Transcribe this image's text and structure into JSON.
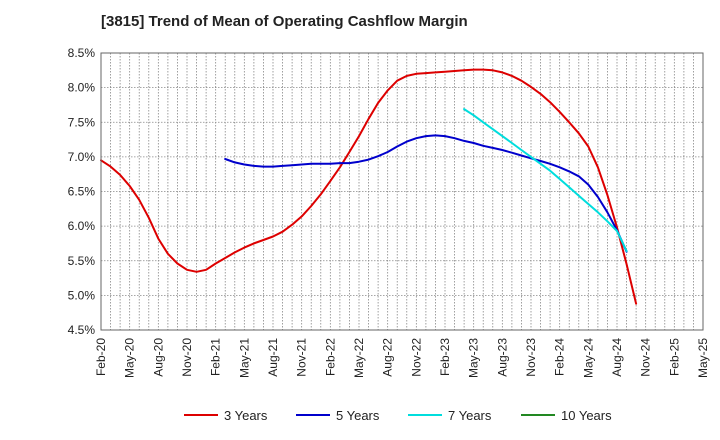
{
  "chart_data": {
    "type": "line",
    "title": "[3815]  Trend of Mean of Operating Cashflow Margin",
    "xlabel": "",
    "ylabel": "",
    "grid": true,
    "legend_position": "bottom",
    "y_axis": {
      "min": 4.5,
      "max": 8.5,
      "ticks": [
        4.5,
        5.0,
        5.5,
        6.0,
        6.5,
        7.0,
        7.5,
        8.0,
        8.5
      ],
      "tick_labels": [
        "4.5%",
        "5.0%",
        "5.5%",
        "6.0%",
        "6.5%",
        "7.0%",
        "7.5%",
        "8.0%",
        "8.5%"
      ]
    },
    "x_axis": {
      "min": "2020-02",
      "max": "2025-05",
      "tick_labels": [
        "Feb-20",
        "May-20",
        "Aug-20",
        "Nov-20",
        "Feb-21",
        "May-21",
        "Aug-21",
        "Nov-21",
        "Feb-22",
        "May-22",
        "Aug-22",
        "Nov-22",
        "Feb-23",
        "May-23",
        "Aug-23",
        "Nov-23",
        "Feb-24",
        "May-24",
        "Aug-24",
        "Nov-24",
        "Feb-25",
        "May-25"
      ]
    },
    "series": [
      {
        "name": "3 Years",
        "color": "#dd0000",
        "points": [
          [
            "2020-02",
            6.95
          ],
          [
            "2020-03",
            6.86
          ],
          [
            "2020-04",
            6.74
          ],
          [
            "2020-05",
            6.58
          ],
          [
            "2020-06",
            6.38
          ],
          [
            "2020-07",
            6.12
          ],
          [
            "2020-08",
            5.82
          ],
          [
            "2020-09",
            5.6
          ],
          [
            "2020-10",
            5.46
          ],
          [
            "2020-11",
            5.37
          ],
          [
            "2020-12",
            5.34
          ],
          [
            "2021-01",
            5.37
          ],
          [
            "2021-02",
            5.46
          ],
          [
            "2021-03",
            5.54
          ],
          [
            "2021-04",
            5.62
          ],
          [
            "2021-05",
            5.69
          ],
          [
            "2021-06",
            5.75
          ],
          [
            "2021-07",
            5.8
          ],
          [
            "2021-08",
            5.85
          ],
          [
            "2021-09",
            5.92
          ],
          [
            "2021-10",
            6.02
          ],
          [
            "2021-11",
            6.14
          ],
          [
            "2021-12",
            6.29
          ],
          [
            "2022-01",
            6.46
          ],
          [
            "2022-02",
            6.65
          ],
          [
            "2022-03",
            6.85
          ],
          [
            "2022-04",
            7.07
          ],
          [
            "2022-05",
            7.3
          ],
          [
            "2022-06",
            7.55
          ],
          [
            "2022-07",
            7.78
          ],
          [
            "2022-08",
            7.96
          ],
          [
            "2022-09",
            8.1
          ],
          [
            "2022-10",
            8.17
          ],
          [
            "2022-11",
            8.2
          ],
          [
            "2022-12",
            8.21
          ],
          [
            "2023-01",
            8.22
          ],
          [
            "2023-02",
            8.23
          ],
          [
            "2023-03",
            8.24
          ],
          [
            "2023-04",
            8.25
          ],
          [
            "2023-05",
            8.26
          ],
          [
            "2023-06",
            8.26
          ],
          [
            "2023-07",
            8.25
          ],
          [
            "2023-08",
            8.22
          ],
          [
            "2023-09",
            8.17
          ],
          [
            "2023-10",
            8.1
          ],
          [
            "2023-11",
            8.01
          ],
          [
            "2023-12",
            7.91
          ],
          [
            "2024-01",
            7.79
          ],
          [
            "2024-02",
            7.65
          ],
          [
            "2024-03",
            7.5
          ],
          [
            "2024-04",
            7.34
          ],
          [
            "2024-05",
            7.15
          ],
          [
            "2024-06",
            6.85
          ],
          [
            "2024-07",
            6.45
          ],
          [
            "2024-08",
            5.98
          ],
          [
            "2024-09",
            5.45
          ],
          [
            "2024-10",
            4.88
          ]
        ]
      },
      {
        "name": "5 Years",
        "color": "#0000cc",
        "points": [
          [
            "2021-03",
            6.97
          ],
          [
            "2021-04",
            6.92
          ],
          [
            "2021-05",
            6.89
          ],
          [
            "2021-06",
            6.87
          ],
          [
            "2021-07",
            6.86
          ],
          [
            "2021-08",
            6.86
          ],
          [
            "2021-09",
            6.87
          ],
          [
            "2021-10",
            6.88
          ],
          [
            "2021-11",
            6.89
          ],
          [
            "2021-12",
            6.9
          ],
          [
            "2022-01",
            6.9
          ],
          [
            "2022-02",
            6.9
          ],
          [
            "2022-03",
            6.91
          ],
          [
            "2022-04",
            6.91
          ],
          [
            "2022-05",
            6.93
          ],
          [
            "2022-06",
            6.96
          ],
          [
            "2022-07",
            7.01
          ],
          [
            "2022-08",
            7.07
          ],
          [
            "2022-09",
            7.15
          ],
          [
            "2022-10",
            7.22
          ],
          [
            "2022-11",
            7.27
          ],
          [
            "2022-12",
            7.3
          ],
          [
            "2023-01",
            7.31
          ],
          [
            "2023-02",
            7.3
          ],
          [
            "2023-03",
            7.27
          ],
          [
            "2023-04",
            7.23
          ],
          [
            "2023-05",
            7.2
          ],
          [
            "2023-06",
            7.16
          ],
          [
            "2023-07",
            7.13
          ],
          [
            "2023-08",
            7.1
          ],
          [
            "2023-09",
            7.06
          ],
          [
            "2023-10",
            7.02
          ],
          [
            "2023-11",
            6.98
          ],
          [
            "2023-12",
            6.94
          ],
          [
            "2024-01",
            6.9
          ],
          [
            "2024-02",
            6.85
          ],
          [
            "2024-03",
            6.79
          ],
          [
            "2024-04",
            6.72
          ],
          [
            "2024-05",
            6.6
          ],
          [
            "2024-06",
            6.42
          ],
          [
            "2024-07",
            6.2
          ],
          [
            "2024-08",
            5.94
          ],
          [
            "2024-09",
            5.63
          ]
        ]
      },
      {
        "name": "7 Years",
        "color": "#00dddd",
        "points": [
          [
            "2023-04",
            7.69
          ],
          [
            "2023-05",
            7.6
          ],
          [
            "2023-06",
            7.5
          ],
          [
            "2023-07",
            7.4
          ],
          [
            "2023-08",
            7.3
          ],
          [
            "2023-09",
            7.2
          ],
          [
            "2023-10",
            7.1
          ],
          [
            "2023-11",
            7.0
          ],
          [
            "2023-12",
            6.9
          ],
          [
            "2024-01",
            6.8
          ],
          [
            "2024-02",
            6.68
          ],
          [
            "2024-03",
            6.56
          ],
          [
            "2024-04",
            6.44
          ],
          [
            "2024-05",
            6.32
          ],
          [
            "2024-06",
            6.2
          ],
          [
            "2024-07",
            6.07
          ],
          [
            "2024-08",
            5.93
          ],
          [
            "2024-09",
            5.64
          ]
        ]
      },
      {
        "name": "10 Years",
        "color": "#228822",
        "points": []
      }
    ]
  }
}
